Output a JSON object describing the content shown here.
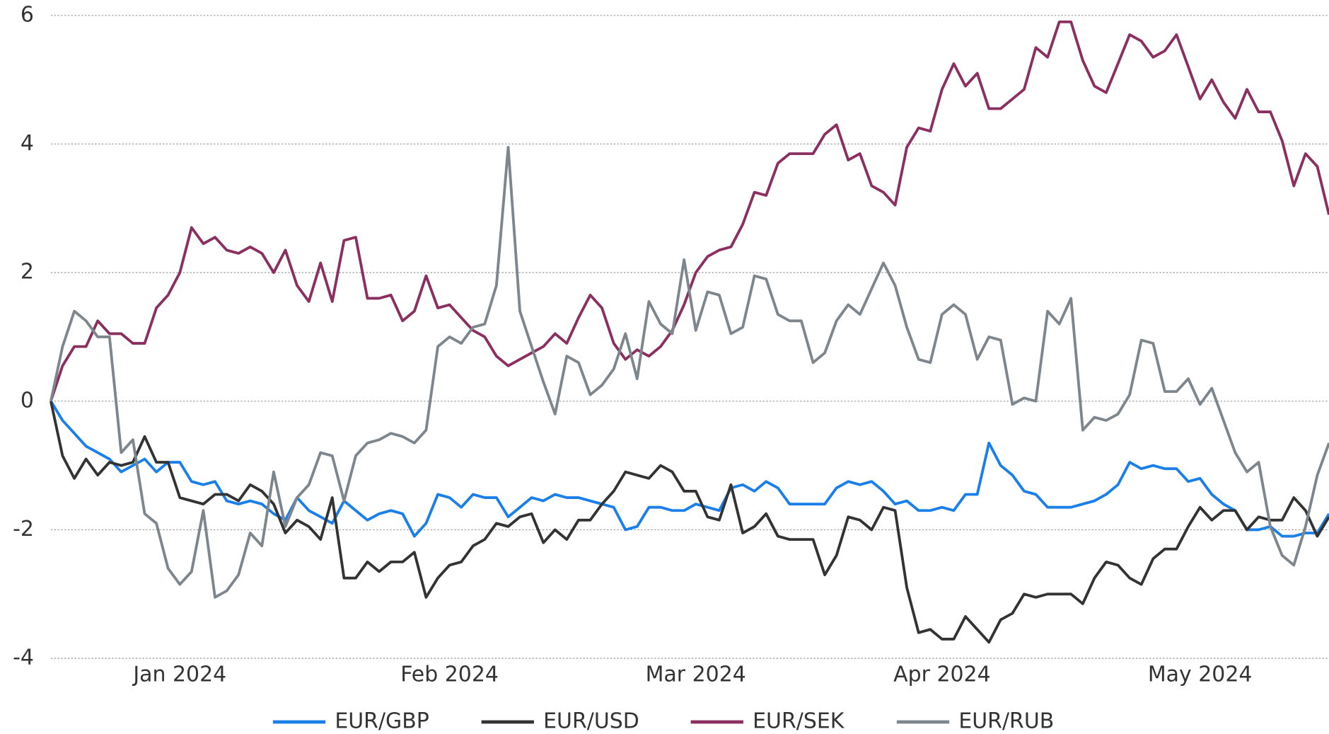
{
  "chart_data": {
    "type": "line",
    "categories": [
      null,
      null,
      null,
      null,
      null,
      null,
      null,
      null,
      null,
      null,
      null,
      "Jan 2024",
      null,
      null,
      null,
      null,
      null,
      null,
      null,
      null,
      null,
      null,
      null,
      null,
      null,
      null,
      null,
      null,
      null,
      null,
      null,
      null,
      null,
      null,
      "Feb 2024",
      null,
      null,
      null,
      null,
      null,
      null,
      null,
      null,
      null,
      null,
      null,
      null,
      null,
      null,
      null,
      null,
      null,
      null,
      null,
      null,
      "Mar 2024",
      null,
      null,
      null,
      null,
      null,
      null,
      null,
      null,
      null,
      null,
      null,
      null,
      null,
      null,
      null,
      null,
      null,
      null,
      null,
      null,
      "Apr 2024",
      null,
      null,
      null,
      null,
      null,
      null,
      null,
      null,
      null,
      null,
      null,
      null,
      null,
      null,
      null,
      null,
      null,
      null,
      null,
      null,
      null,
      "May 2024",
      null,
      null,
      null,
      null,
      null,
      null,
      null,
      null,
      null,
      null,
      null
    ],
    "ylim": [
      -4,
      6
    ],
    "yticks": [
      -4,
      -2,
      0,
      2,
      4,
      6
    ],
    "grid": true,
    "legend": "bottom",
    "series": [
      {
        "name": "EUR/GBP",
        "color": "#1a7fe8",
        "values": [
          0,
          -0.3,
          -0.5,
          -0.7,
          -0.8,
          -0.9,
          -1.1,
          -1.0,
          -0.9,
          -1.1,
          -0.95,
          -0.95,
          -1.25,
          -1.3,
          -1.25,
          -1.55,
          -1.6,
          -1.55,
          -1.6,
          -1.75,
          -1.85,
          -1.5,
          -1.7,
          -1.8,
          -1.9,
          -1.55,
          -1.7,
          -1.85,
          -1.75,
          -1.7,
          -1.75,
          -2.1,
          -1.9,
          -1.45,
          -1.5,
          -1.65,
          -1.45,
          -1.5,
          -1.5,
          -1.8,
          -1.65,
          -1.5,
          -1.55,
          -1.45,
          -1.5,
          -1.5,
          -1.55,
          -1.6,
          -1.65,
          -2.0,
          -1.95,
          -1.65,
          -1.65,
          -1.7,
          -1.7,
          -1.6,
          -1.65,
          -1.7,
          -1.35,
          -1.3,
          -1.4,
          -1.25,
          -1.35,
          -1.6,
          -1.6,
          -1.6,
          -1.6,
          -1.35,
          -1.25,
          -1.3,
          -1.25,
          -1.4,
          -1.6,
          -1.55,
          -1.7,
          -1.7,
          -1.65,
          -1.7,
          -1.45,
          -1.45,
          -0.65,
          -1.0,
          -1.15,
          -1.4,
          -1.45,
          -1.65,
          -1.65,
          -1.65,
          -1.6,
          -1.55,
          -1.45,
          -1.3,
          -0.95,
          -1.05,
          -1.0,
          -1.05,
          -1.05,
          -1.25,
          -1.2,
          -1.45,
          -1.6,
          -1.7,
          -2.0,
          -2.0,
          -1.95,
          -2.1,
          -2.1,
          -2.05,
          -2.05,
          -1.75
        ]
      },
      {
        "name": "EUR/USD",
        "color": "#333333",
        "values": [
          0,
          -0.85,
          -1.2,
          -0.9,
          -1.15,
          -0.95,
          -1.0,
          -0.95,
          -0.55,
          -0.95,
          -0.95,
          -1.5,
          -1.55,
          -1.6,
          -1.45,
          -1.45,
          -1.55,
          -1.3,
          -1.4,
          -1.6,
          -2.05,
          -1.85,
          -1.95,
          -2.15,
          -1.5,
          -2.75,
          -2.75,
          -2.5,
          -2.65,
          -2.5,
          -2.5,
          -2.35,
          -3.05,
          -2.75,
          -2.55,
          -2.5,
          -2.25,
          -2.15,
          -1.9,
          -1.95,
          -1.8,
          -1.75,
          -2.2,
          -2.0,
          -2.15,
          -1.85,
          -1.85,
          -1.6,
          -1.4,
          -1.1,
          -1.15,
          -1.2,
          -1.0,
          -1.1,
          -1.4,
          -1.4,
          -1.8,
          -1.85,
          -1.3,
          -2.05,
          -1.95,
          -1.75,
          -2.1,
          -2.15,
          -2.15,
          -2.15,
          -2.7,
          -2.4,
          -1.8,
          -1.85,
          -2.0,
          -1.65,
          -1.7,
          -2.9,
          -3.6,
          -3.55,
          -3.7,
          -3.7,
          -3.35,
          -3.55,
          -3.75,
          -3.4,
          -3.3,
          -3.0,
          -3.05,
          -3.0,
          -3.0,
          -3.0,
          -3.15,
          -2.75,
          -2.5,
          -2.55,
          -2.75,
          -2.85,
          -2.45,
          -2.3,
          -2.3,
          -1.95,
          -1.65,
          -1.85,
          -1.7,
          -1.7,
          -2.0,
          -1.8,
          -1.85,
          -1.85,
          -1.5,
          -1.7,
          -2.1,
          -1.8
        ]
      },
      {
        "name": "EUR/SEK",
        "color": "#8b2f61",
        "values": [
          0,
          0.55,
          0.85,
          0.85,
          1.25,
          1.05,
          1.05,
          0.9,
          0.9,
          1.45,
          1.65,
          2.0,
          2.7,
          2.45,
          2.55,
          2.35,
          2.3,
          2.4,
          2.3,
          2.0,
          2.35,
          1.8,
          1.55,
          2.15,
          1.55,
          2.5,
          2.55,
          1.6,
          1.6,
          1.65,
          1.25,
          1.4,
          1.95,
          1.45,
          1.5,
          1.3,
          1.1,
          1.0,
          0.7,
          0.55,
          0.65,
          0.75,
          0.85,
          1.05,
          0.9,
          1.3,
          1.65,
          1.45,
          0.9,
          0.65,
          0.8,
          0.7,
          0.85,
          1.1,
          1.5,
          2.0,
          2.25,
          2.35,
          2.4,
          2.75,
          3.25,
          3.2,
          3.7,
          3.85,
          3.85,
          3.85,
          4.15,
          4.3,
          3.75,
          3.85,
          3.35,
          3.25,
          3.05,
          3.95,
          4.25,
          4.2,
          4.85,
          5.25,
          4.9,
          5.1,
          4.55,
          4.55,
          4.7,
          4.85,
          5.5,
          5.35,
          5.9,
          5.9,
          5.3,
          4.9,
          4.8,
          5.25,
          5.7,
          5.6,
          5.35,
          5.45,
          5.7,
          5.2,
          4.7,
          5.0,
          4.65,
          4.4,
          4.85,
          4.5,
          4.5,
          4.05,
          3.35,
          3.85,
          3.65,
          2.9
        ]
      },
      {
        "name": "EUR/RUB",
        "color": "#7d868c",
        "values": [
          0,
          0.85,
          1.4,
          1.25,
          1.0,
          1.0,
          -0.8,
          -0.6,
          -1.75,
          -1.9,
          -2.6,
          -2.85,
          -2.65,
          -1.7,
          -3.05,
          -2.95,
          -2.7,
          -2.05,
          -2.25,
          -1.1,
          -1.95,
          -1.5,
          -1.3,
          -0.8,
          -0.85,
          -1.55,
          -0.85,
          -0.65,
          -0.6,
          -0.5,
          -0.55,
          -0.65,
          -0.45,
          0.85,
          1.0,
          0.9,
          1.15,
          1.2,
          1.8,
          3.95,
          1.4,
          0.85,
          0.3,
          -0.2,
          0.7,
          0.6,
          0.1,
          0.25,
          0.5,
          1.05,
          0.35,
          1.55,
          1.2,
          1.05,
          2.2,
          1.1,
          1.7,
          1.65,
          1.05,
          1.15,
          1.95,
          1.9,
          1.35,
          1.25,
          1.25,
          0.6,
          0.75,
          1.25,
          1.5,
          1.35,
          1.75,
          2.15,
          1.8,
          1.15,
          0.65,
          0.6,
          1.35,
          1.5,
          1.35,
          0.65,
          1.0,
          0.95,
          -0.05,
          0.05,
          0.0,
          1.4,
          1.2,
          1.6,
          -0.45,
          -0.25,
          -0.3,
          -0.2,
          0.1,
          0.95,
          0.9,
          0.15,
          0.15,
          0.35,
          -0.05,
          0.2,
          -0.3,
          -0.8,
          -1.1,
          -0.95,
          -1.95,
          -2.4,
          -2.55,
          -1.95,
          -1.15,
          -0.65
        ]
      }
    ]
  }
}
